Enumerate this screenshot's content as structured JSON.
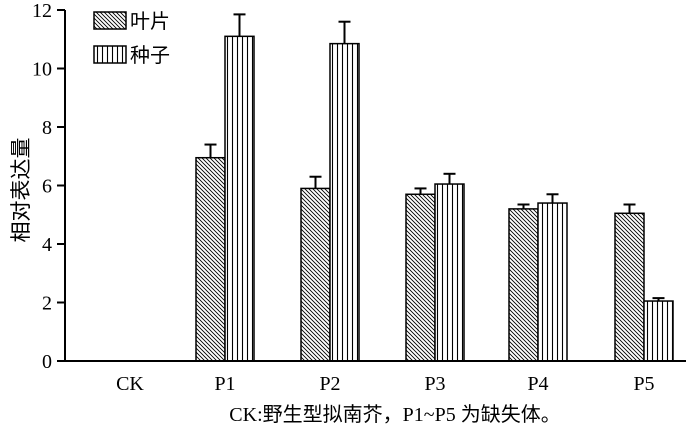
{
  "chart_data": {
    "type": "bar",
    "title": "",
    "xlabel": "CK:野生型拟南芥，P1~P5 为缺失体。",
    "ylabel": "相对表达量",
    "ylim": [
      0,
      12
    ],
    "yticks": [
      "0",
      "2",
      "4",
      "6",
      "8",
      "10",
      "12"
    ],
    "categories": [
      "CK",
      "P1",
      "P2",
      "P3",
      "P4",
      "P5"
    ],
    "series": [
      {
        "name": "叶片",
        "pattern": "diagonal-hatch",
        "values": [
          0,
          6.95,
          5.9,
          5.7,
          5.2,
          5.05
        ],
        "errors": [
          0,
          0.45,
          0.4,
          0.2,
          0.15,
          0.3
        ]
      },
      {
        "name": "种子",
        "pattern": "vertical-hatch",
        "values": [
          0,
          11.1,
          10.85,
          6.05,
          5.4,
          2.05
        ],
        "errors": [
          0,
          0.75,
          0.75,
          0.35,
          0.3,
          0.1
        ]
      }
    ],
    "legend_position": "top-left",
    "grid": false
  }
}
